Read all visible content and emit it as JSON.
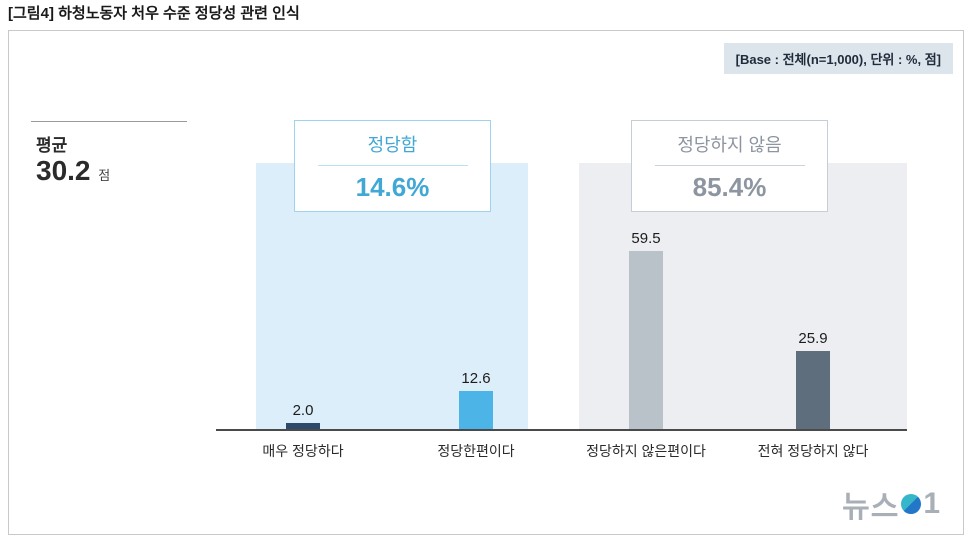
{
  "page_title": "[그림4] 하청노동자 처우 수준 정당성 관련 인식",
  "base_note": "[Base : 전체(n=1,000), 단위 : %, 점]",
  "average": {
    "label": "평균",
    "value": "30.2",
    "unit": "점"
  },
  "groups": [
    {
      "label": "정당함",
      "percent": "14.6%",
      "color": "#41a7d5",
      "border_color": "#9fd2ec"
    },
    {
      "label": "정당하지 않음",
      "percent": "85.4%",
      "color": "#8d95a0",
      "border_color": "#c6ced5"
    }
  ],
  "chart_data": {
    "type": "bar",
    "categories": [
      "매우 정당하다",
      "정당한편이다",
      "정당하지 않은편이다",
      "전혀 정당하지 않다"
    ],
    "values": [
      2.0,
      12.6,
      59.5,
      25.9
    ],
    "bar_colors": [
      "#2d4a6b",
      "#4cb4e7",
      "#b9c1c9",
      "#5f6e7d"
    ],
    "shade_colors": [
      "#ddeefb",
      "#eceef1"
    ],
    "title": "[그림4] 하청노동자 처우 수준 정당성 관련 인식",
    "xlabel": "",
    "ylabel": "",
    "ylim": [
      0,
      65
    ],
    "unit": "%",
    "grid": false,
    "legend": false
  },
  "watermark": {
    "part1": "뉴스",
    "part2": "1"
  }
}
